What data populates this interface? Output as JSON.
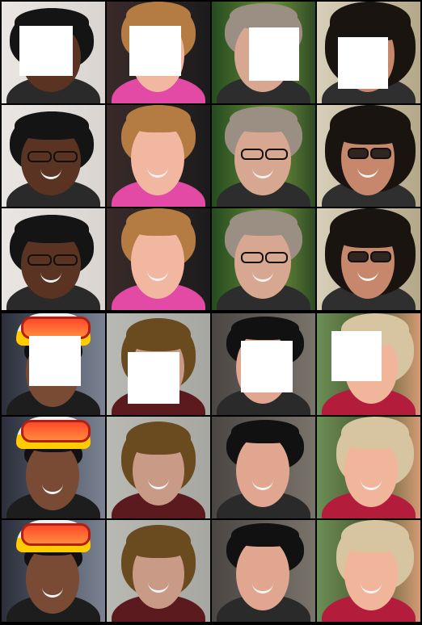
{
  "grid": {
    "columns": 4,
    "rows_per_group": 3,
    "groups": 2
  },
  "colors": {
    "background": "#000000",
    "mask": "#ffffff"
  },
  "tiles": [
    {
      "group": 0,
      "row": 0,
      "col": 0,
      "subject": "woman-dark-hair",
      "masked": true,
      "glasses": "none"
    },
    {
      "group": 0,
      "row": 0,
      "col": 1,
      "subject": "woman-blonde",
      "masked": true,
      "glasses": "none"
    },
    {
      "group": 0,
      "row": 0,
      "col": 2,
      "subject": "woman-grey-hair",
      "masked": true,
      "glasses": "none"
    },
    {
      "group": 0,
      "row": 0,
      "col": 3,
      "subject": "woman-curly-hair",
      "masked": true,
      "glasses": "none"
    },
    {
      "group": 0,
      "row": 1,
      "col": 0,
      "subject": "woman-dark-hair",
      "masked": false,
      "glasses": "clear"
    },
    {
      "group": 0,
      "row": 1,
      "col": 1,
      "subject": "woman-blonde",
      "masked": false,
      "glasses": "none"
    },
    {
      "group": 0,
      "row": 1,
      "col": 2,
      "subject": "woman-grey-hair",
      "masked": false,
      "glasses": "clear"
    },
    {
      "group": 0,
      "row": 1,
      "col": 3,
      "subject": "woman-curly-hair",
      "masked": false,
      "glasses": "dark"
    },
    {
      "group": 0,
      "row": 2,
      "col": 0,
      "subject": "woman-dark-hair",
      "masked": false,
      "glasses": "clear"
    },
    {
      "group": 0,
      "row": 2,
      "col": 1,
      "subject": "woman-blonde",
      "masked": false,
      "glasses": "none"
    },
    {
      "group": 0,
      "row": 2,
      "col": 2,
      "subject": "woman-grey-hair",
      "masked": false,
      "glasses": "clear"
    },
    {
      "group": 0,
      "row": 2,
      "col": 3,
      "subject": "woman-curly-hair",
      "masked": false,
      "glasses": "dark"
    },
    {
      "group": 1,
      "row": 0,
      "col": 0,
      "subject": "firefighter",
      "masked": true,
      "glasses": "none"
    },
    {
      "group": 1,
      "row": 0,
      "col": 1,
      "subject": "woman-brown-bob",
      "masked": true,
      "glasses": "none"
    },
    {
      "group": 1,
      "row": 0,
      "col": 2,
      "subject": "man-black-hair",
      "masked": true,
      "glasses": "none"
    },
    {
      "group": 1,
      "row": 0,
      "col": 3,
      "subject": "woman-blonde-outdoor",
      "masked": true,
      "glasses": "none"
    },
    {
      "group": 1,
      "row": 1,
      "col": 0,
      "subject": "firefighter",
      "masked": false,
      "glasses": "none"
    },
    {
      "group": 1,
      "row": 1,
      "col": 1,
      "subject": "woman-brown-bob",
      "masked": false,
      "glasses": "none"
    },
    {
      "group": 1,
      "row": 1,
      "col": 2,
      "subject": "man-black-hair",
      "masked": false,
      "glasses": "none"
    },
    {
      "group": 1,
      "row": 1,
      "col": 3,
      "subject": "woman-blonde-outdoor",
      "masked": false,
      "glasses": "none"
    },
    {
      "group": 1,
      "row": 2,
      "col": 0,
      "subject": "firefighter",
      "masked": false,
      "glasses": "none"
    },
    {
      "group": 1,
      "row": 2,
      "col": 1,
      "subject": "woman-brown-bob",
      "masked": false,
      "glasses": "none"
    },
    {
      "group": 1,
      "row": 2,
      "col": 2,
      "subject": "man-black-hair",
      "masked": false,
      "glasses": "none"
    },
    {
      "group": 1,
      "row": 2,
      "col": 3,
      "subject": "woman-blonde-outdoor",
      "masked": false,
      "glasses": "none"
    }
  ]
}
